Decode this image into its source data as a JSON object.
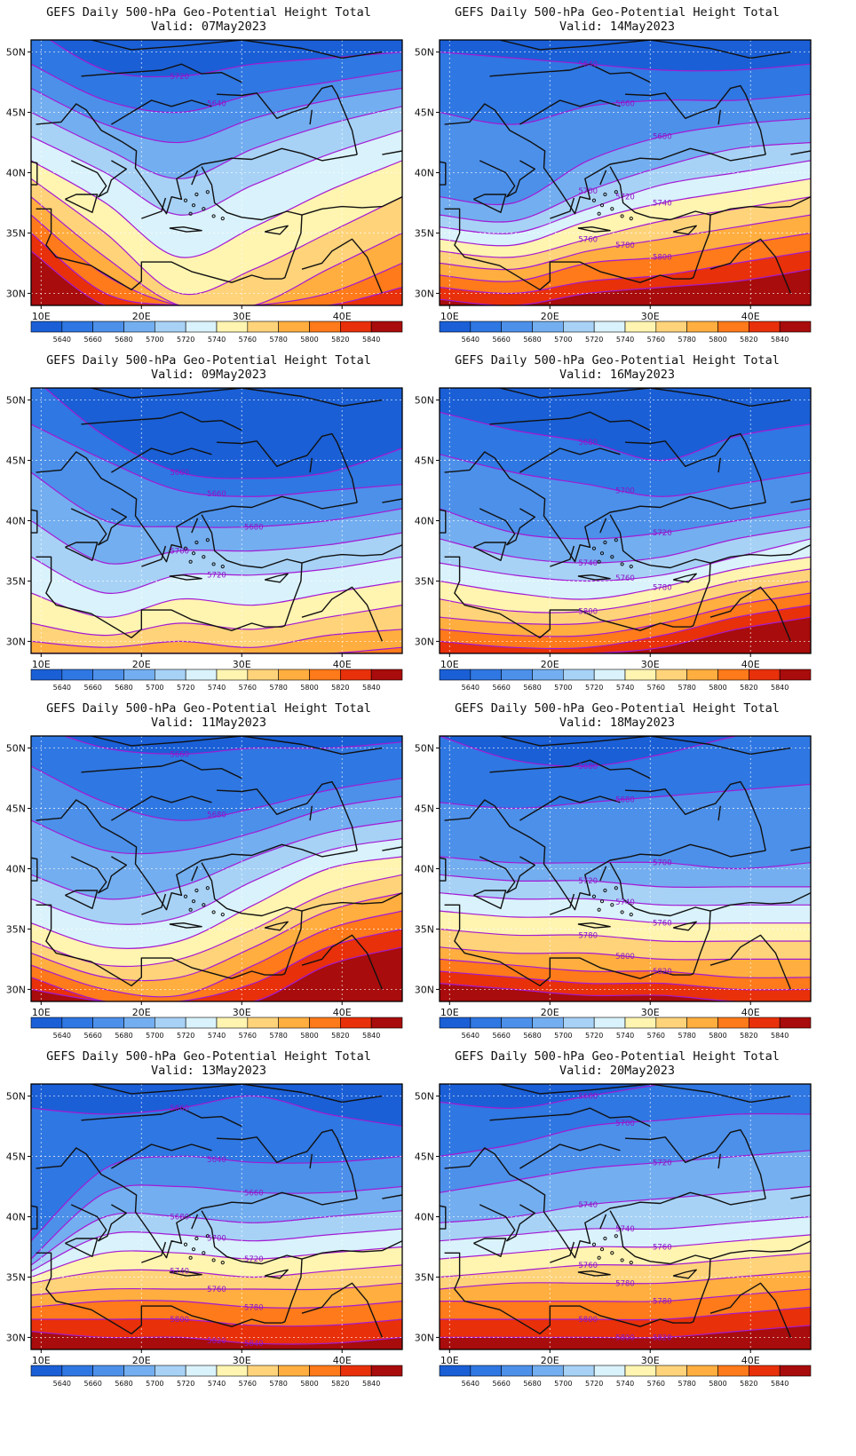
{
  "figure": {
    "title_line": "GEFS Daily 500-hPa Geo-Potential Height Total",
    "valid_prefix": "Valid:",
    "lat_ticks": [
      "50N",
      "45N",
      "40N",
      "35N",
      "30N"
    ],
    "lon_ticks": [
      "10E",
      "20E",
      "30E",
      "40E"
    ],
    "colorbar": {
      "labels": [
        "5640",
        "5660",
        "5680",
        "5700",
        "5720",
        "5740",
        "5760",
        "5780",
        "5800",
        "5820",
        "5840"
      ],
      "colors": [
        "#1a5fd6",
        "#2f77e2",
        "#4c90ea",
        "#73aef0",
        "#a7d2f6",
        "#d9f2fb",
        "#fff4b0",
        "#ffd37a",
        "#ffae3f",
        "#ff7a1a",
        "#e8300a",
        "#a80c0c"
      ]
    }
  },
  "panels": [
    {
      "valid": "Valid: 07May2023",
      "contour_labels": [
        "5720",
        "5640"
      ],
      "bands": [
        {
          "color": "#1a5fd6",
          "lat": [
            52,
            48.5,
            48,
            49,
            49.5,
            50
          ]
        },
        {
          "color": "#2f77e2",
          "lat": [
            49,
            46,
            45,
            46.5,
            47.5,
            48.5
          ]
        },
        {
          "color": "#4c90ea",
          "lat": [
            47,
            44,
            42.5,
            44.5,
            46,
            47
          ]
        },
        {
          "color": "#73aef0",
          "lat": [
            45,
            42,
            39.5,
            42,
            44,
            45.5
          ]
        },
        {
          "color": "#a7d2f6",
          "lat": [
            43,
            40,
            36.5,
            39,
            41.5,
            43.5
          ]
        },
        {
          "color": "#d9f2fb",
          "lat": [
            41,
            37.5,
            33,
            35.5,
            38.5,
            41
          ]
        },
        {
          "color": "#fff4b0",
          "lat": [
            39.5,
            35,
            30,
            32,
            35,
            38
          ]
        },
        {
          "color": "#ffd37a",
          "lat": [
            38,
            33,
            29,
            29,
            32,
            35
          ]
        },
        {
          "color": "#ffae3f",
          "lat": [
            36.5,
            31.5,
            29,
            29,
            30,
            32.5
          ]
        },
        {
          "color": "#ff7a1a",
          "lat": [
            35,
            30,
            29,
            29,
            29,
            30.5
          ]
        },
        {
          "color": "#e8300a",
          "lat": [
            33.5,
            29,
            29,
            29,
            29,
            29
          ]
        }
      ]
    },
    {
      "valid": "Valid: 14May2023",
      "contour_labels": [
        "5640",
        "5660",
        "5680",
        "5700",
        "5720",
        "5740",
        "5760",
        "5780",
        "5800"
      ],
      "bands": [
        {
          "color": "#1a5fd6",
          "lat": [
            50,
            49.5,
            49,
            48.5,
            48.5,
            49
          ]
        },
        {
          "color": "#2f77e2",
          "lat": [
            45,
            44,
            45.5,
            46,
            46,
            46.5
          ]
        },
        {
          "color": "#4c90ea",
          "lat": [
            38,
            37.5,
            41,
            43,
            44,
            44.5
          ]
        },
        {
          "color": "#73aef0",
          "lat": [
            36.5,
            36,
            38.5,
            40.5,
            42,
            42.5
          ]
        },
        {
          "color": "#a7d2f6",
          "lat": [
            35.5,
            35,
            37,
            39,
            40,
            41
          ]
        },
        {
          "color": "#d9f2fb",
          "lat": [
            34.5,
            34,
            36,
            37.5,
            38.5,
            39.5
          ]
        },
        {
          "color": "#fff4b0",
          "lat": [
            33.5,
            33,
            34.5,
            36,
            37,
            38
          ]
        },
        {
          "color": "#ffd37a",
          "lat": [
            32.5,
            32,
            33.5,
            34.5,
            35.5,
            36.5
          ]
        },
        {
          "color": "#ffae3f",
          "lat": [
            31.5,
            31,
            32.5,
            33,
            34,
            35
          ]
        },
        {
          "color": "#ff7a1a",
          "lat": [
            30.5,
            30,
            31,
            31.5,
            32.5,
            33.5
          ]
        },
        {
          "color": "#e8300a",
          "lat": [
            29.5,
            29,
            30,
            30.5,
            31,
            32
          ]
        }
      ]
    },
    {
      "valid": "Valid: 09May2023",
      "contour_labels": [
        "5660",
        "5660",
        "5680",
        "5700",
        "5720"
      ],
      "bands": [
        {
          "color": "#1a5fd6",
          "lat": [
            52,
            47,
            44,
            43.5,
            44,
            46
          ]
        },
        {
          "color": "#2f77e2",
          "lat": [
            48,
            45,
            42.5,
            42,
            42.5,
            43
          ]
        },
        {
          "color": "#4c90ea",
          "lat": [
            44,
            40,
            39.5,
            39.5,
            40,
            41
          ]
        },
        {
          "color": "#73aef0",
          "lat": [
            40,
            36.5,
            37.5,
            37.5,
            38,
            39
          ]
        },
        {
          "color": "#a7d2f6",
          "lat": [
            37,
            34,
            35.5,
            35.5,
            36,
            37
          ]
        },
        {
          "color": "#d9f2fb",
          "lat": [
            34,
            32,
            33.5,
            33,
            34,
            35
          ]
        },
        {
          "color": "#fff4b0",
          "lat": [
            31.5,
            30.5,
            31.5,
            31,
            32,
            33
          ]
        },
        {
          "color": "#ffd37a",
          "lat": [
            30,
            29.5,
            30,
            29.5,
            30.5,
            31
          ]
        },
        {
          "color": "#ffae3f",
          "lat": [
            29,
            29,
            29,
            29,
            29,
            29.5
          ]
        },
        {
          "color": "#ff7a1a",
          "lat": [
            29,
            29,
            29,
            29,
            29,
            29
          ]
        },
        {
          "color": "#e8300a",
          "lat": [
            29,
            29,
            29,
            29,
            29,
            29
          ]
        }
      ]
    },
    {
      "valid": "Valid: 16May2023",
      "contour_labels": [
        "5680",
        "5700",
        "5720",
        "5740",
        "5760",
        "5780",
        "5800"
      ],
      "bands": [
        {
          "color": "#1a5fd6",
          "lat": [
            49,
            47.5,
            46.5,
            45,
            47,
            48
          ]
        },
        {
          "color": "#2f77e2",
          "lat": [
            45.5,
            44,
            43,
            42,
            43,
            44
          ]
        },
        {
          "color": "#4c90ea",
          "lat": [
            41,
            39,
            38.5,
            39,
            40,
            41
          ]
        },
        {
          "color": "#73aef0",
          "lat": [
            38.5,
            37,
            36.5,
            37,
            38.5,
            39.5
          ]
        },
        {
          "color": "#a7d2f6",
          "lat": [
            36.5,
            35.5,
            35,
            35.5,
            37,
            38.5
          ]
        },
        {
          "color": "#d9f2fb",
          "lat": [
            35,
            34,
            33.5,
            34.5,
            36,
            37
          ]
        },
        {
          "color": "#fff4b0",
          "lat": [
            33.5,
            32.5,
            32.5,
            33.5,
            35,
            36
          ]
        },
        {
          "color": "#ffd37a",
          "lat": [
            32,
            31.5,
            31.5,
            32.5,
            34,
            35
          ]
        },
        {
          "color": "#ffae3f",
          "lat": [
            31,
            30.5,
            30.5,
            31.5,
            33,
            34
          ]
        },
        {
          "color": "#ff7a1a",
          "lat": [
            30,
            29.5,
            29.5,
            30.5,
            32,
            33
          ]
        },
        {
          "color": "#e8300a",
          "lat": [
            29,
            29,
            29,
            29.5,
            31,
            32
          ]
        }
      ]
    },
    {
      "valid": "Valid: 11May2023",
      "contour_labels": [
        "5660",
        "5680"
      ],
      "bands": [
        {
          "color": "#1a5fd6",
          "lat": [
            52,
            50,
            49.5,
            50,
            50,
            50.5
          ]
        },
        {
          "color": "#2f77e2",
          "lat": [
            48.5,
            45.5,
            44,
            45,
            46.5,
            47.5
          ]
        },
        {
          "color": "#4c90ea",
          "lat": [
            44,
            41.5,
            41.5,
            43,
            45,
            46
          ]
        },
        {
          "color": "#73aef0",
          "lat": [
            39.5,
            37.5,
            38.5,
            41,
            43,
            44
          ]
        },
        {
          "color": "#a7d2f6",
          "lat": [
            37.5,
            35.5,
            36,
            39,
            41.5,
            42.5
          ]
        },
        {
          "color": "#d9f2fb",
          "lat": [
            35.5,
            33.5,
            34,
            37,
            40,
            41
          ]
        },
        {
          "color": "#fff4b0",
          "lat": [
            34,
            32,
            32.5,
            35,
            38,
            39.5
          ]
        },
        {
          "color": "#ffd37a",
          "lat": [
            33,
            31,
            31,
            33.5,
            36.5,
            38
          ]
        },
        {
          "color": "#ffae3f",
          "lat": [
            32,
            30,
            29.5,
            32,
            35,
            36.5
          ]
        },
        {
          "color": "#ff7a1a",
          "lat": [
            31,
            29,
            29,
            30.5,
            33.5,
            35
          ]
        },
        {
          "color": "#e8300a",
          "lat": [
            30,
            29,
            29,
            29,
            32,
            33.5
          ]
        }
      ]
    },
    {
      "valid": "Valid: 18May2023",
      "contour_labels": [
        "5680",
        "5680",
        "5700",
        "5720",
        "5740",
        "5760",
        "5780",
        "5800",
        "5820"
      ],
      "bands": [
        {
          "color": "#1a5fd6",
          "lat": [
            51,
            49,
            48.5,
            49.5,
            51,
            52
          ]
        },
        {
          "color": "#2f77e2",
          "lat": [
            45.5,
            45,
            45.5,
            46,
            46.5,
            47
          ]
        },
        {
          "color": "#4c90ea",
          "lat": [
            41,
            40.5,
            40.5,
            40.5,
            40,
            40.5
          ]
        },
        {
          "color": "#73aef0",
          "lat": [
            39.5,
            39,
            39,
            38.5,
            38.5,
            38.5
          ]
        },
        {
          "color": "#a7d2f6",
          "lat": [
            38,
            37.5,
            37.5,
            37,
            37,
            37
          ]
        },
        {
          "color": "#d9f2fb",
          "lat": [
            36.5,
            36,
            36,
            35.5,
            35.5,
            35.5
          ]
        },
        {
          "color": "#fff4b0",
          "lat": [
            35,
            34.5,
            34.5,
            34,
            34,
            34
          ]
        },
        {
          "color": "#ffd37a",
          "lat": [
            33.5,
            33,
            33,
            32.5,
            32.5,
            32.5
          ]
        },
        {
          "color": "#ffae3f",
          "lat": [
            32.5,
            32,
            31.5,
            31.5,
            31,
            31
          ]
        },
        {
          "color": "#ff7a1a",
          "lat": [
            31.5,
            31,
            30.5,
            30.5,
            30,
            30
          ]
        },
        {
          "color": "#e8300a",
          "lat": [
            30.5,
            30,
            29.5,
            29.5,
            29,
            29
          ]
        }
      ]
    },
    {
      "valid": "Valid: 13May2023",
      "contour_labels": [
        "5660",
        "5640",
        "5660",
        "5680",
        "5700",
        "5720",
        "5740",
        "5760",
        "5780",
        "5800",
        "5820",
        "5840"
      ],
      "bands": [
        {
          "color": "#1a5fd6",
          "lat": [
            49,
            48.5,
            49,
            50,
            48.5,
            47.5
          ]
        },
        {
          "color": "#2f77e2",
          "lat": [
            38,
            44,
            45,
            44.5,
            44.5,
            45
          ]
        },
        {
          "color": "#4c90ea",
          "lat": [
            36.5,
            42,
            42.5,
            42,
            42,
            42.5
          ]
        },
        {
          "color": "#73aef0",
          "lat": [
            36,
            40,
            40,
            39.5,
            40,
            40.5
          ]
        },
        {
          "color": "#a7d2f6",
          "lat": [
            35.5,
            38.5,
            38.5,
            38,
            38.5,
            39
          ]
        },
        {
          "color": "#d9f2fb",
          "lat": [
            35,
            37,
            37,
            36.5,
            37,
            37.5
          ]
        },
        {
          "color": "#fff4b0",
          "lat": [
            34.5,
            35.5,
            35.5,
            35,
            35.5,
            36
          ]
        },
        {
          "color": "#ffd37a",
          "lat": [
            33.5,
            34,
            34,
            34,
            34,
            34.5
          ]
        },
        {
          "color": "#ffae3f",
          "lat": [
            32.5,
            33,
            33,
            32.5,
            32.5,
            33
          ]
        },
        {
          "color": "#ff7a1a",
          "lat": [
            31.5,
            31.5,
            31.5,
            31,
            31,
            31.5
          ]
        },
        {
          "color": "#e8300a",
          "lat": [
            30.5,
            30,
            30,
            29.5,
            29.5,
            30
          ]
        }
      ]
    },
    {
      "valid": "Valid: 20May2023",
      "contour_labels": [
        "5680",
        "5700",
        "5720",
        "5740",
        "5740",
        "5760",
        "5760",
        "5780",
        "5780",
        "5800",
        "5800",
        "5820"
      ],
      "bands": [
        {
          "color": "#1a5fd6",
          "lat": [
            49.5,
            49,
            50,
            51,
            52,
            52
          ]
        },
        {
          "color": "#2f77e2",
          "lat": [
            45,
            46,
            47.5,
            48,
            48.5,
            48.5
          ]
        },
        {
          "color": "#4c90ea",
          "lat": [
            42,
            43,
            44,
            44.5,
            45,
            45.5
          ]
        },
        {
          "color": "#73aef0",
          "lat": [
            39.5,
            40,
            41,
            41.5,
            42,
            42.5
          ]
        },
        {
          "color": "#a7d2f6",
          "lat": [
            38,
            38.5,
            39,
            39,
            39.5,
            40
          ]
        },
        {
          "color": "#d9f2fb",
          "lat": [
            36.5,
            37,
            37.5,
            37.5,
            38,
            38.5
          ]
        },
        {
          "color": "#fff4b0",
          "lat": [
            35,
            35.5,
            36,
            36,
            36.5,
            37
          ]
        },
        {
          "color": "#ffd37a",
          "lat": [
            34,
            34.5,
            34.5,
            34.5,
            35,
            35.5
          ]
        },
        {
          "color": "#ffae3f",
          "lat": [
            33,
            33,
            33,
            33,
            33.5,
            34
          ]
        },
        {
          "color": "#ff7a1a",
          "lat": [
            31.5,
            31.5,
            31.5,
            31.5,
            32,
            32.5
          ]
        },
        {
          "color": "#e8300a",
          "lat": [
            30,
            30,
            30,
            30,
            30.5,
            31
          ]
        }
      ]
    }
  ]
}
